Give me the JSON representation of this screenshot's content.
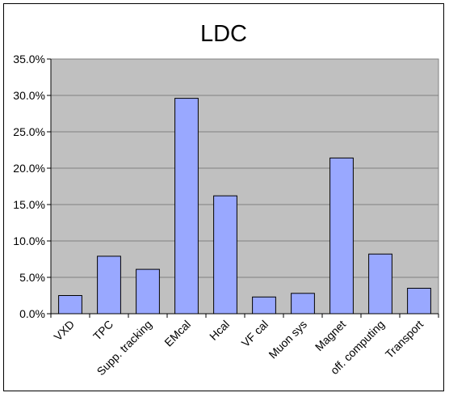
{
  "colors": {
    "plot_background": "#c0c0c0",
    "bar_fill": "#99a8ff",
    "bar_stroke": "#000000",
    "gridline": "#808080"
  },
  "chart_data": {
    "type": "bar",
    "title": "LDC",
    "categories": [
      "VXD",
      "TPC",
      "Supp. tracking",
      "EMcal",
      "Hcal",
      "VF cal",
      "Muon sys",
      "Magnet",
      "off. computing",
      "Transport"
    ],
    "values": [
      2.5,
      7.9,
      6.1,
      29.6,
      16.2,
      2.3,
      2.8,
      21.4,
      8.2,
      3.5
    ],
    "unit": "%",
    "ylim": [
      0,
      35
    ],
    "yticks": [
      "0.0%",
      "5.0%",
      "10.0%",
      "15.0%",
      "20.0%",
      "25.0%",
      "30.0%",
      "35.0%"
    ],
    "grid": true,
    "legend": "none"
  }
}
